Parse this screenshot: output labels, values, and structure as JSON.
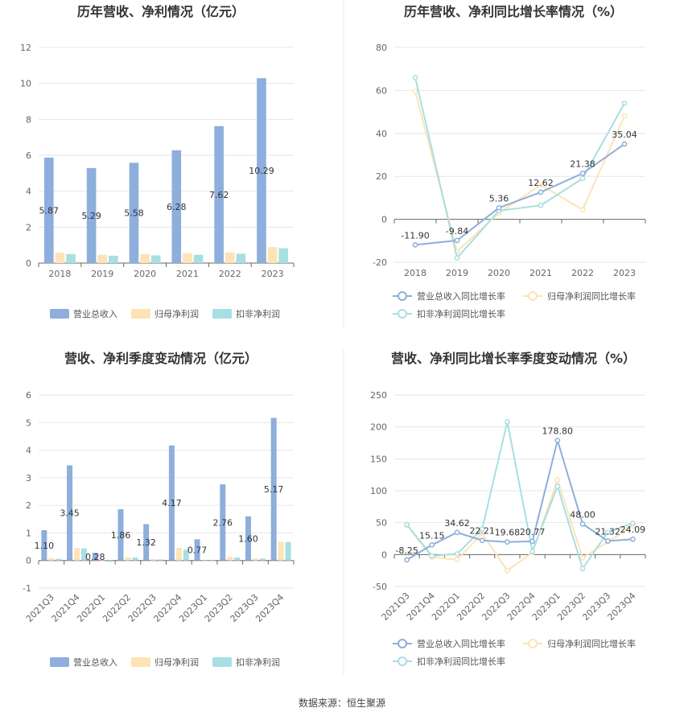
{
  "colors": {
    "revenue": "#8eaedc",
    "net_profit": "#fde3b5",
    "deducted_profit": "#a7dfe2"
  },
  "source": "数据来源：恒生聚源",
  "chart_data": [
    {
      "id": "annual_amounts",
      "type": "bar",
      "title": "历年营收、净利情况（亿元）",
      "categories": [
        "2018",
        "2019",
        "2020",
        "2021",
        "2022",
        "2023"
      ],
      "ylim": [
        0,
        12
      ],
      "yticks": [
        0,
        2,
        4,
        6,
        8,
        10,
        12
      ],
      "series": [
        {
          "name": "营业总收入",
          "color_key": "revenue",
          "values": [
            5.87,
            5.29,
            5.58,
            6.28,
            7.62,
            10.29
          ],
          "labels": [
            "5.87",
            "5.29",
            "5.58",
            "6.28",
            "7.62",
            "10.29"
          ]
        },
        {
          "name": "归母净利润",
          "color_key": "net_profit",
          "values": [
            0.58,
            0.46,
            0.49,
            0.55,
            0.6,
            0.89
          ]
        },
        {
          "name": "扣非净利润",
          "color_key": "deducted_profit",
          "values": [
            0.5,
            0.41,
            0.43,
            0.46,
            0.52,
            0.82
          ]
        }
      ]
    },
    {
      "id": "annual_growth",
      "type": "line",
      "title": "历年营收、净利同比增长率情况（%）",
      "categories": [
        "2018",
        "2019",
        "2020",
        "2021",
        "2022",
        "2023"
      ],
      "ylim": [
        -20,
        80
      ],
      "yticks": [
        -20,
        0,
        20,
        40,
        60,
        80
      ],
      "series": [
        {
          "name": "营业总收入同比增长率",
          "color_key": "revenue",
          "values": [
            -11.9,
            -9.84,
            5.36,
            12.62,
            21.38,
            35.04
          ],
          "labels": [
            "-11.90",
            "-9.84",
            "5.36",
            "12.62",
            "21.38",
            "35.04"
          ]
        },
        {
          "name": "归母净利润同比增长率",
          "color_key": "net_profit",
          "values": [
            59.5,
            -15.0,
            3.0,
            16.0,
            4.5,
            48.0
          ]
        },
        {
          "name": "扣非净利润同比增长率",
          "color_key": "deducted_profit",
          "values": [
            66.0,
            -18.0,
            4.0,
            6.5,
            19.0,
            54.0
          ]
        }
      ]
    },
    {
      "id": "quarterly_amounts",
      "type": "bar",
      "title": "营收、净利季度变动情况（亿元）",
      "categories": [
        "2021Q3",
        "2021Q4",
        "2022Q1",
        "2022Q2",
        "2022Q3",
        "2022Q4",
        "2023Q1",
        "2023Q2",
        "2023Q3",
        "2023Q4"
      ],
      "ylim": [
        -1,
        6
      ],
      "yticks": [
        -1,
        0,
        1,
        2,
        3,
        4,
        5,
        6
      ],
      "series": [
        {
          "name": "营业总收入",
          "color_key": "revenue",
          "values": [
            1.1,
            3.45,
            0.28,
            1.86,
            1.32,
            4.17,
            0.77,
            2.76,
            1.6,
            5.17
          ],
          "labels": [
            "1.10",
            "3.45",
            "0.28",
            "1.86",
            "1.32",
            "4.17",
            "0.77",
            "2.76",
            "1.60",
            "5.17"
          ]
        },
        {
          "name": "归母净利润",
          "color_key": "net_profit",
          "values": [
            0.08,
            0.45,
            -0.03,
            0.12,
            0.05,
            0.46,
            0.0,
            0.13,
            0.08,
            0.68
          ]
        },
        {
          "name": "扣非净利润",
          "color_key": "deducted_profit",
          "values": [
            0.06,
            0.44,
            -0.05,
            0.11,
            0.04,
            0.39,
            -0.01,
            0.11,
            0.07,
            0.67
          ]
        }
      ]
    },
    {
      "id": "quarterly_growth",
      "type": "line",
      "title": "营收、净利同比增长率季度变动情况（%）",
      "categories": [
        "2021Q3",
        "2021Q4",
        "2022Q1",
        "2022Q2",
        "2022Q3",
        "2022Q4",
        "2023Q1",
        "2023Q2",
        "2023Q3",
        "2023Q4"
      ],
      "ylim": [
        -50,
        250
      ],
      "yticks": [
        -50,
        0,
        50,
        100,
        150,
        200,
        250
      ],
      "series": [
        {
          "name": "营业总收入同比增长率",
          "color_key": "revenue",
          "values": [
            -8.25,
            15.15,
            34.62,
            22.21,
            19.68,
            20.77,
            178.8,
            48.0,
            21.32,
            24.09
          ],
          "labels": [
            "-8.25",
            "15.15",
            "34.62",
            "22.21",
            "19.68",
            "20.77",
            "178.80",
            "48.00",
            "21.32",
            "24.09"
          ]
        },
        {
          "name": "归母净利润同比增长率",
          "color_key": "net_profit",
          "values": [
            46.0,
            -4.0,
            -8.0,
            33.0,
            -25.0,
            3.0,
            117.0,
            -5.0,
            20.0,
            45.0
          ]
        },
        {
          "name": "扣非净利润同比增长率",
          "color_key": "deducted_profit",
          "values": [
            47.0,
            -2.0,
            1.0,
            40.0,
            208.0,
            5.0,
            107.0,
            -22.0,
            35.0,
            49.0
          ]
        }
      ]
    }
  ]
}
